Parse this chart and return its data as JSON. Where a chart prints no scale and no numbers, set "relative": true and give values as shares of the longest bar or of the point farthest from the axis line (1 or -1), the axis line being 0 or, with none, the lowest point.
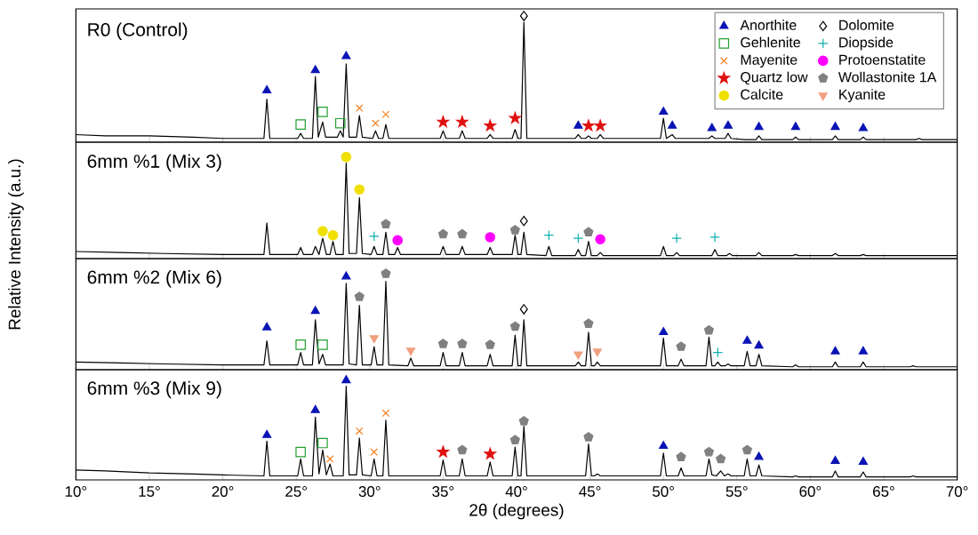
{
  "chart_data": [
    {
      "type": "line",
      "title": "R0 (Control)",
      "relative": true,
      "xlim": [
        10,
        70
      ],
      "xticks": [
        10,
        15,
        20,
        25,
        30,
        35,
        40,
        45,
        50,
        55,
        60,
        65,
        70
      ],
      "tick_labels": false,
      "legend": "top right",
      "series": [
        {
          "color": "#000000",
          "x": [
            10,
            12,
            15,
            18,
            20,
            22.8,
            23.0,
            23.2,
            25.1,
            25.3,
            25.5,
            26.1,
            26.3,
            26.5,
            26.8,
            27.0,
            27.8,
            28.0,
            28.2,
            28.4,
            28.6,
            29.1,
            29.3,
            29.5,
            30.2,
            30.4,
            30.6,
            30.9,
            31.1,
            31.3,
            34.8,
            35.0,
            35.2,
            36.1,
            36.3,
            36.5,
            38.0,
            38.2,
            38.4,
            39.7,
            39.9,
            40.1,
            40.3,
            40.5,
            40.7,
            44.0,
            44.2,
            44.4,
            44.7,
            44.9,
            45.1,
            45.5,
            45.7,
            45.9,
            49.8,
            50.0,
            50.2,
            50.6,
            50.8,
            53.1,
            53.3,
            53.5,
            54.2,
            54.4,
            54.6,
            55.5,
            56.3,
            56.5,
            56.7,
            58.8,
            59.0,
            59.2,
            61.5,
            61.7,
            61.9,
            63.4,
            63.6,
            63.8,
            67.2,
            67.4,
            67.6,
            70
          ],
          "values": [
            0.06,
            0.05,
            0.05,
            0.04,
            0.03,
            0.03,
            0.34,
            0.03,
            0.03,
            0.07,
            0.03,
            0.03,
            0.52,
            0.04,
            0.16,
            0.04,
            0.04,
            0.09,
            0.04,
            0.62,
            0.04,
            0.04,
            0.21,
            0.04,
            0.03,
            0.09,
            0.03,
            0.03,
            0.14,
            0.03,
            0.03,
            0.09,
            0.03,
            0.03,
            0.09,
            0.03,
            0.03,
            0.06,
            0.03,
            0.03,
            0.1,
            0.03,
            0.03,
            0.95,
            0.03,
            0.03,
            0.06,
            0.03,
            0.03,
            0.05,
            0.03,
            0.03,
            0.06,
            0.03,
            0.03,
            0.19,
            0.03,
            0.06,
            0.03,
            0.03,
            0.05,
            0.03,
            0.03,
            0.07,
            0.03,
            0.02,
            0.02,
            0.05,
            0.02,
            0.02,
            0.04,
            0.02,
            0.02,
            0.05,
            0.02,
            0.02,
            0.04,
            0.02,
            0.02,
            0.03,
            0.02,
            0.02
          ]
        },
        {
          "type": "scatter",
          "name": "Anorthite",
          "color": "#0a14b4",
          "marker": "triangle",
          "x": [
            23.0,
            26.3,
            28.4,
            44.2,
            50.0,
            50.6,
            53.3,
            54.4,
            56.5,
            59.0,
            61.7,
            63.6
          ],
          "values": [
            0.41,
            0.57,
            0.68,
            0.13,
            0.24,
            0.13,
            0.11,
            0.13,
            0.12,
            0.12,
            0.12,
            0.11
          ]
        },
        {
          "type": "scatter",
          "name": "Gehlenite",
          "color": "#22a030",
          "marker": "square",
          "x": [
            25.3,
            26.8,
            28.0
          ],
          "values": [
            0.14,
            0.24,
            0.15
          ]
        },
        {
          "type": "scatter",
          "name": "Mayenite",
          "color": "#f08020",
          "marker": "cross",
          "x": [
            29.3,
            30.4,
            31.1
          ],
          "values": [
            0.27,
            0.15,
            0.22
          ]
        },
        {
          "type": "scatter",
          "name": "Quartz low",
          "color": "#e01010",
          "marker": "star",
          "x": [
            35.0,
            36.3,
            38.2,
            39.9,
            44.9,
            45.7
          ],
          "values": [
            0.16,
            0.16,
            0.13,
            0.19,
            0.13,
            0.13
          ]
        },
        {
          "type": "scatter",
          "name": "Calcite",
          "color": "#f0e000",
          "marker": "circle"
        },
        {
          "type": "scatter",
          "name": "Dolomite",
          "color": "#000000",
          "marker": "diamond",
          "x": [
            40.5
          ],
          "values": [
            1.0
          ]
        },
        {
          "type": "scatter",
          "name": "Diopside",
          "color": "#10b0b0",
          "marker": "plus"
        },
        {
          "type": "scatter",
          "name": "Protoenstatite",
          "color": "#ff00ff",
          "marker": "circle"
        },
        {
          "type": "scatter",
          "name": "Wollastonite 1A",
          "color": "#808080"
        },
        {
          "type": "scatter",
          "name": "Kyanite",
          "color": "#f0a080",
          "marker": "triangle-down"
        }
      ]
    },
    {
      "type": "line",
      "title": "6mm %1 (Mix 3)",
      "ylabel": "Relative Intensity (a.u.)",
      "relative": true,
      "xlim": [
        10,
        70
      ],
      "xticks": [
        10,
        15,
        20,
        25,
        30,
        35,
        40,
        45,
        50,
        55,
        60,
        65,
        70
      ],
      "tick_labels": false,
      "series": [
        {
          "color": "#000000",
          "x": [
            10,
            13,
            16,
            20,
            22.8,
            23.0,
            23.2,
            25.1,
            25.3,
            25.5,
            26.1,
            26.3,
            26.55,
            26.8,
            27.05,
            27.3,
            27.5,
            27.7,
            28.2,
            28.4,
            28.6,
            29.1,
            29.3,
            29.5,
            30.1,
            30.3,
            30.5,
            30.9,
            31.1,
            31.3,
            31.7,
            31.9,
            32.1,
            34.8,
            35.0,
            35.2,
            36.1,
            36.3,
            36.5,
            38.0,
            38.2,
            38.4,
            39.7,
            39.9,
            40.1,
            40.3,
            40.5,
            40.7,
            42.0,
            42.2,
            42.4,
            44.0,
            44.2,
            44.4,
            44.7,
            44.9,
            45.1,
            45.5,
            45.7,
            45.9,
            49.8,
            50.0,
            50.2,
            50.7,
            50.9,
            51.1,
            53.3,
            53.5,
            53.7,
            54.3,
            54.5,
            54.7,
            56.3,
            56.5,
            56.7,
            58.8,
            59.0,
            59.2,
            61.5,
            61.7,
            61.9,
            63.4,
            63.6,
            63.8,
            70
          ],
          "values": [
            0.07,
            0.06,
            0.05,
            0.04,
            0.04,
            0.35,
            0.04,
            0.04,
            0.11,
            0.04,
            0.04,
            0.12,
            0.04,
            0.2,
            0.04,
            0.04,
            0.17,
            0.04,
            0.04,
            0.94,
            0.05,
            0.05,
            0.6,
            0.05,
            0.04,
            0.12,
            0.04,
            0.04,
            0.26,
            0.04,
            0.04,
            0.11,
            0.04,
            0.04,
            0.12,
            0.04,
            0.04,
            0.12,
            0.04,
            0.04,
            0.11,
            0.04,
            0.04,
            0.23,
            0.04,
            0.04,
            0.26,
            0.04,
            0.03,
            0.12,
            0.03,
            0.03,
            0.09,
            0.03,
            0.03,
            0.17,
            0.03,
            0.03,
            0.06,
            0.03,
            0.03,
            0.12,
            0.03,
            0.03,
            0.06,
            0.03,
            0.03,
            0.09,
            0.03,
            0.03,
            0.05,
            0.03,
            0.03,
            0.06,
            0.03,
            0.03,
            0.04,
            0.03,
            0.03,
            0.05,
            0.03,
            0.03,
            0.04,
            0.03,
            0.03
          ]
        },
        {
          "type": "scatter",
          "color": "#f0e000",
          "marker": "circle",
          "x": [
            26.8,
            27.5,
            28.4,
            29.3
          ],
          "values": [
            0.27,
            0.23,
            1.0,
            0.68
          ]
        },
        {
          "type": "scatter",
          "color": "#10b0b0",
          "marker": "plus",
          "x": [
            30.3,
            42.2,
            44.2,
            50.9,
            53.5
          ],
          "values": [
            0.22,
            0.23,
            0.2,
            0.2,
            0.21
          ]
        },
        {
          "type": "scatter",
          "color": "#808080",
          "x": [
            31.1,
            35.0,
            36.3,
            39.9,
            44.9
          ],
          "values": [
            0.34,
            0.24,
            0.24,
            0.28,
            0.26
          ]
        },
        {
          "type": "scatter",
          "color": "#ff00ff",
          "marker": "circle",
          "x": [
            31.9,
            38.2,
            45.7
          ],
          "values": [
            0.18,
            0.21,
            0.19
          ]
        },
        {
          "type": "scatter",
          "color": "#000000",
          "marker": "diamond",
          "x": [
            40.5
          ],
          "values": [
            0.37
          ]
        }
      ]
    },
    {
      "type": "line",
      "title": "6mm %2 (Mix 6)",
      "relative": true,
      "xlim": [
        10,
        70
      ],
      "xticks": [
        10,
        15,
        20,
        25,
        30,
        35,
        40,
        45,
        50,
        55,
        60,
        65,
        70
      ],
      "tick_labels": false,
      "series": [
        {
          "color": "#000000",
          "x": [
            10,
            13,
            16,
            20,
            22.8,
            23.0,
            23.2,
            25.1,
            25.3,
            25.5,
            26.1,
            26.3,
            26.55,
            26.8,
            27.0,
            28.2,
            28.4,
            28.6,
            29.1,
            29.3,
            29.5,
            30.1,
            30.3,
            30.5,
            30.9,
            31.1,
            31.3,
            32.6,
            32.8,
            33.0,
            34.8,
            35.0,
            35.2,
            36.1,
            36.3,
            36.5,
            38.0,
            38.2,
            38.4,
            39.7,
            39.9,
            40.1,
            40.3,
            40.5,
            40.7,
            44.0,
            44.2,
            44.4,
            44.7,
            44.9,
            45.1,
            45.3,
            45.5,
            45.7,
            49.8,
            50.0,
            50.2,
            51.0,
            51.2,
            51.4,
            52.9,
            53.1,
            53.3,
            53.5,
            53.7,
            53.9,
            54.2,
            54.4,
            54.6,
            55.5,
            55.7,
            55.9,
            56.3,
            56.5,
            56.7,
            58.8,
            59.0,
            59.2,
            61.5,
            61.7,
            61.9,
            63.4,
            63.6,
            63.8,
            66.8,
            67.0,
            67.2,
            70
          ],
          "values": [
            0.08,
            0.07,
            0.06,
            0.05,
            0.05,
            0.3,
            0.05,
            0.05,
            0.18,
            0.05,
            0.05,
            0.52,
            0.06,
            0.16,
            0.05,
            0.05,
            0.9,
            0.06,
            0.05,
            0.67,
            0.05,
            0.05,
            0.24,
            0.05,
            0.05,
            0.92,
            0.05,
            0.04,
            0.12,
            0.04,
            0.04,
            0.18,
            0.04,
            0.04,
            0.18,
            0.04,
            0.04,
            0.16,
            0.04,
            0.04,
            0.36,
            0.04,
            0.04,
            0.52,
            0.04,
            0.04,
            0.08,
            0.04,
            0.04,
            0.39,
            0.04,
            0.04,
            0.08,
            0.04,
            0.04,
            0.33,
            0.04,
            0.04,
            0.11,
            0.04,
            0.04,
            0.34,
            0.04,
            0.04,
            0.08,
            0.04,
            0.04,
            0.06,
            0.04,
            0.04,
            0.19,
            0.04,
            0.04,
            0.16,
            0.04,
            0.03,
            0.05,
            0.03,
            0.03,
            0.08,
            0.03,
            0.03,
            0.08,
            0.03,
            0.03,
            0.04,
            0.03,
            0.03
          ]
        },
        {
          "type": "scatter",
          "color": "#0a14b4",
          "marker": "triangle",
          "x": [
            23.0,
            26.3,
            28.4,
            50.0,
            55.7,
            56.5,
            61.7,
            63.6
          ],
          "values": [
            0.44,
            0.61,
            0.97,
            0.39,
            0.3,
            0.25,
            0.19,
            0.19
          ]
        },
        {
          "type": "scatter",
          "color": "#22a030",
          "marker": "square",
          "x": [
            25.3,
            26.8
          ],
          "values": [
            0.26,
            0.26
          ]
        },
        {
          "type": "scatter",
          "color": "#808080",
          "x": [
            29.3,
            31.1,
            35.0,
            36.3,
            38.2,
            39.9,
            44.9,
            51.2,
            53.1
          ],
          "values": [
            0.76,
            1.0,
            0.27,
            0.27,
            0.26,
            0.45,
            0.48,
            0.24,
            0.41
          ]
        },
        {
          "type": "scatter",
          "color": "#f0a080",
          "marker": "triangle-down",
          "x": [
            30.3,
            32.8,
            44.2,
            45.5
          ],
          "values": [
            0.33,
            0.2,
            0.16,
            0.19
          ]
        },
        {
          "type": "scatter",
          "color": "#000000",
          "marker": "diamond",
          "x": [
            40.5
          ],
          "values": [
            0.63
          ]
        },
        {
          "type": "scatter",
          "color": "#10b0b0",
          "marker": "plus",
          "x": [
            53.7
          ],
          "values": [
            0.18
          ]
        }
      ]
    },
    {
      "type": "line",
      "title": "6mm %3 (Mix 9)",
      "xlabel": "2θ (degrees)",
      "relative": true,
      "xlim": [
        10,
        70
      ],
      "xticks": [
        {
          "value": 10,
          "label": "10°"
        },
        {
          "value": 15,
          "label": "15°"
        },
        {
          "value": 20,
          "label": "20°"
        },
        {
          "value": 25,
          "label": "25°"
        },
        {
          "value": 30,
          "label": "30°"
        },
        {
          "value": 35,
          "label": "35°"
        },
        {
          "value": 40,
          "label": "40°"
        },
        {
          "value": 45,
          "label": "45°"
        },
        {
          "value": 50,
          "label": "50°"
        },
        {
          "value": 55,
          "label": "55°"
        },
        {
          "value": 60,
          "label": "60°"
        },
        {
          "value": 65,
          "label": "65°"
        },
        {
          "value": 70,
          "label": "70°"
        }
      ],
      "tick_labels": "x",
      "series": [
        {
          "color": "#000000",
          "x": [
            10,
            12,
            15,
            18,
            20,
            22.8,
            23.0,
            23.2,
            25.1,
            25.3,
            25.5,
            26.1,
            26.3,
            26.55,
            26.8,
            27.05,
            27.3,
            27.5,
            28.2,
            28.4,
            28.6,
            29.1,
            29.3,
            29.5,
            30.1,
            30.3,
            30.5,
            30.9,
            31.1,
            31.3,
            34.8,
            35.0,
            35.2,
            36.1,
            36.3,
            36.5,
            38.0,
            38.2,
            38.4,
            39.7,
            39.9,
            40.1,
            40.3,
            40.5,
            40.7,
            44.7,
            44.9,
            45.1,
            45.3,
            45.5,
            45.7,
            49.8,
            50.0,
            50.2,
            51.0,
            51.2,
            51.4,
            52.9,
            53.1,
            53.3,
            53.6,
            53.9,
            54.15,
            54.4,
            54.6,
            55.5,
            55.7,
            55.9,
            56.3,
            56.5,
            56.7,
            58.8,
            59.0,
            59.2,
            61.5,
            61.7,
            61.9,
            63.4,
            63.6,
            63.8,
            66.8,
            67.0,
            67.2,
            70
          ],
          "values": [
            0.1,
            0.09,
            0.07,
            0.06,
            0.05,
            0.04,
            0.39,
            0.04,
            0.04,
            0.21,
            0.04,
            0.04,
            0.63,
            0.06,
            0.3,
            0.05,
            0.16,
            0.04,
            0.04,
            0.94,
            0.05,
            0.05,
            0.42,
            0.05,
            0.04,
            0.21,
            0.04,
            0.04,
            0.6,
            0.04,
            0.04,
            0.2,
            0.04,
            0.04,
            0.21,
            0.04,
            0.04,
            0.18,
            0.04,
            0.04,
            0.33,
            0.04,
            0.04,
            0.54,
            0.04,
            0.04,
            0.36,
            0.04,
            0.04,
            0.06,
            0.04,
            0.04,
            0.27,
            0.04,
            0.04,
            0.12,
            0.04,
            0.04,
            0.21,
            0.05,
            0.04,
            0.09,
            0.04,
            0.06,
            0.04,
            0.04,
            0.21,
            0.04,
            0.04,
            0.15,
            0.04,
            0.03,
            0.04,
            0.03,
            0.03,
            0.09,
            0.03,
            0.03,
            0.08,
            0.03,
            0.03,
            0.04,
            0.03,
            0.03
          ]
        },
        {
          "type": "scatter",
          "color": "#0a14b4",
          "marker": "triangle",
          "x": [
            23.0,
            26.3,
            28.4,
            50.0,
            56.5,
            61.7,
            63.6
          ],
          "values": [
            0.45,
            0.7,
            1.0,
            0.34,
            0.23,
            0.19,
            0.18
          ]
        },
        {
          "type": "scatter",
          "color": "#22a030",
          "marker": "square",
          "x": [
            25.3,
            26.8
          ],
          "values": [
            0.28,
            0.37
          ]
        },
        {
          "type": "scatter",
          "color": "#f08020",
          "marker": "cross",
          "x": [
            27.3,
            29.3,
            30.3,
            31.1
          ],
          "values": [
            0.21,
            0.49,
            0.28,
            0.67
          ]
        },
        {
          "type": "scatter",
          "color": "#e01010",
          "marker": "star",
          "x": [
            35.0,
            38.2
          ],
          "values": [
            0.28,
            0.26
          ]
        },
        {
          "type": "scatter",
          "color": "#808080",
          "x": [
            36.3,
            39.9,
            40.5,
            44.9,
            51.2,
            53.1,
            53.9,
            55.7
          ],
          "values": [
            0.3,
            0.4,
            0.59,
            0.43,
            0.23,
            0.28,
            0.21,
            0.3
          ]
        }
      ]
    }
  ]
}
